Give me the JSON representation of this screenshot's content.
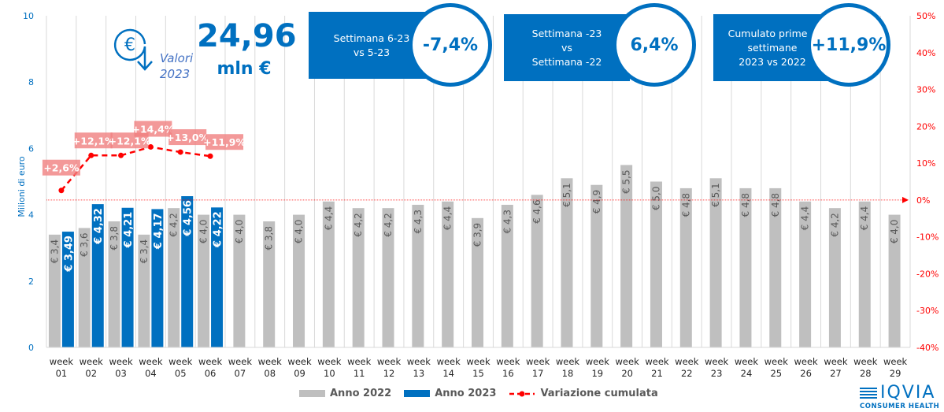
{
  "header": {
    "total_value": "24,96",
    "total_unit": "mln €",
    "valori_line1": "Valori",
    "valori_line2": "2023",
    "euro_icon": "euro-circle-down-arrow-icon"
  },
  "kpis": [
    {
      "label_lines": [
        "Settimana 6-23",
        "vs 5-23"
      ],
      "value": "-7,4%"
    },
    {
      "label_lines": [
        "Settimana -23",
        "vs",
        "Settimana -22"
      ],
      "value": "6,4%"
    },
    {
      "label_lines": [
        "Cumulato prime 6",
        "settimane",
        "2023  vs 2022"
      ],
      "value": "+11,9%"
    }
  ],
  "logo": {
    "main": "IQVIA",
    "sub": "CONSUMER HEALTH"
  },
  "colors": {
    "brand": "#0070c0",
    "y2022": "#bfbfbf",
    "line": "#ff0000",
    "label_box": "#f08080"
  },
  "chart_data": {
    "type": "bar",
    "title": "",
    "xlabel": "",
    "ylabel": "Milioni di euro",
    "y2label": "",
    "ylim": [
      0,
      10
    ],
    "y_ticks": [
      "0",
      "2",
      "4",
      "6",
      "8",
      "10"
    ],
    "y_tick_values": [
      0,
      2,
      4,
      6,
      8,
      10
    ],
    "y2lim": [
      -40,
      50
    ],
    "y2_ticks": [
      "50%",
      "40%",
      "30%",
      "20%",
      "10%",
      "0%",
      "-10%",
      "-20%",
      "-30%",
      "-40%"
    ],
    "y2_tick_values": [
      50,
      40,
      30,
      20,
      10,
      0,
      -10,
      -20,
      -30,
      -40
    ],
    "grid": "vertical",
    "legend_position": "bottom",
    "categories": [
      "week 01",
      "week 02",
      "week 03",
      "week 04",
      "week 05",
      "week 06",
      "week 07",
      "week 08",
      "week 09",
      "week 10",
      "week 11",
      "week 12",
      "week 13",
      "week 14",
      "week 15",
      "week 16",
      "week 17",
      "week 18",
      "week 19",
      "week 20",
      "week 21",
      "week 22",
      "week 23",
      "week 24",
      "week 25",
      "week 26",
      "week 27",
      "week 28",
      "week 29"
    ],
    "series": [
      {
        "name": "Anno 2022",
        "type": "bar",
        "axis": "left",
        "values": [
          3.4,
          3.6,
          3.8,
          3.4,
          4.2,
          4.0,
          4.0,
          3.8,
          4.0,
          4.4,
          4.2,
          4.2,
          4.3,
          4.4,
          3.9,
          4.3,
          4.6,
          5.1,
          4.9,
          5.5,
          5.0,
          4.8,
          5.1,
          4.8,
          4.8,
          4.4,
          4.2,
          4.4,
          4.0
        ],
        "labels": [
          "€ 3,4",
          "€ 3,6",
          "€ 3,8",
          "€ 3,4",
          "€ 4,2",
          "€ 4,0",
          "€ 4,0",
          "€ 3,8",
          "€ 4,0",
          "€ 4,4",
          "€ 4,2",
          "€ 4,2",
          "€ 4,3",
          "€ 4,4",
          "€ 3,9",
          "€ 4,3",
          "€ 4,6",
          "€ 5,1",
          "€ 4,9",
          "€ 5,5",
          "€ 5,0",
          "€ 4,8",
          "€ 5,1",
          "€ 4,8",
          "€ 4,8",
          "€ 4,4",
          "€ 4,2",
          "€ 4,4",
          "€ 4,0"
        ]
      },
      {
        "name": "Anno 2023",
        "type": "bar",
        "axis": "left",
        "values": [
          3.49,
          4.32,
          4.21,
          4.17,
          4.56,
          4.22
        ],
        "labels": [
          "€ 3,49",
          "€ 4,32",
          "€ 4,21",
          "€ 4,17",
          "€ 4,56",
          "€ 4,22"
        ]
      },
      {
        "name": "Variazione cumulata",
        "type": "line",
        "axis": "right",
        "style": "dashed-markers",
        "values": [
          2.6,
          12.1,
          12.1,
          14.4,
          13.0,
          11.9
        ],
        "labels": [
          "+2,6%",
          "+12,1%",
          "+12,1%",
          "+14,4%",
          "+13,0%",
          "+11,9%"
        ]
      }
    ],
    "reference_line": {
      "axis": "right",
      "value": 0,
      "style": "dotted-arrow"
    }
  }
}
